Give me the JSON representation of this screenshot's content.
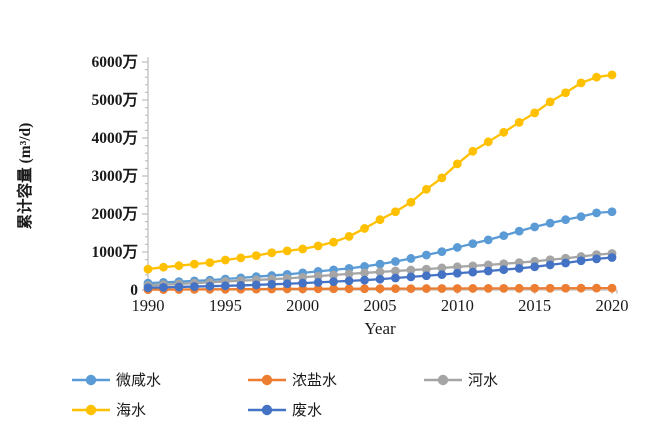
{
  "chart_data": {
    "type": "line",
    "title": "",
    "xlabel": "Year",
    "ylabel": "累计容量 (m³/d)",
    "x_ticks": [
      1990,
      1995,
      2000,
      2005,
      2010,
      2015,
      2020
    ],
    "x_range": [
      1990,
      2020
    ],
    "y_ticks_labels": [
      "0",
      "1000万",
      "2000万",
      "3000万",
      "4000万",
      "5000万",
      "6000万"
    ],
    "y_unit": "万 m³/d",
    "ylim_wan": [
      0,
      6000
    ],
    "y_major_interval_wan": 1000,
    "y_minor_interval_wan": 200,
    "grid": false,
    "legend_position": "bottom",
    "marker": "circle",
    "years": [
      1990,
      1991,
      1992,
      1993,
      1994,
      1995,
      1996,
      1997,
      1998,
      1999,
      2000,
      2001,
      2002,
      2003,
      2004,
      2005,
      2006,
      2007,
      2008,
      2009,
      2010,
      2011,
      2012,
      2013,
      2014,
      2015,
      2016,
      2017,
      2018,
      2019,
      2020
    ],
    "series": [
      {
        "name": "微咸水",
        "color": "#5B9BD5",
        "values_wan": [
          180,
          200,
          220,
          240,
          260,
          290,
          320,
          350,
          380,
          410,
          450,
          490,
          530,
          570,
          620,
          680,
          750,
          830,
          920,
          1010,
          1120,
          1220,
          1320,
          1430,
          1550,
          1660,
          1760,
          1850,
          1930,
          2030,
          2060
        ]
      },
      {
        "name": "浓盐水",
        "color": "#ED7D31",
        "values_wan": [
          10,
          12,
          14,
          16,
          18,
          20,
          22,
          24,
          26,
          28,
          30,
          31,
          32,
          33,
          34,
          35,
          36,
          37,
          38,
          39,
          40,
          41,
          42,
          43,
          44,
          45,
          46,
          47,
          48,
          49,
          50
        ]
      },
      {
        "name": "河水",
        "color": "#A5A5A5",
        "values_wan": [
          120,
          140,
          160,
          180,
          200,
          225,
          245,
          265,
          285,
          305,
          335,
          365,
          395,
          425,
          450,
          475,
          500,
          525,
          550,
          580,
          610,
          635,
          660,
          690,
          720,
          755,
          795,
          835,
          880,
          930,
          960
        ]
      },
      {
        "name": "海水",
        "color": "#FFC000",
        "values_wan": [
          550,
          600,
          640,
          680,
          720,
          790,
          845,
          905,
          980,
          1030,
          1080,
          1160,
          1260,
          1410,
          1620,
          1850,
          2060,
          2310,
          2650,
          2950,
          3320,
          3650,
          3900,
          4150,
          4410,
          4660,
          4950,
          5190,
          5450,
          5600,
          5660
        ]
      },
      {
        "name": "废水",
        "color": "#4472C4",
        "values_wan": [
          60,
          70,
          80,
          90,
          100,
          110,
          120,
          135,
          150,
          165,
          180,
          200,
          220,
          240,
          260,
          285,
          315,
          345,
          375,
          405,
          440,
          470,
          500,
          535,
          570,
          610,
          660,
          710,
          770,
          820,
          855
        ]
      }
    ],
    "axis_color": "#BFBFBF",
    "text_color": "#1a1a1a"
  }
}
